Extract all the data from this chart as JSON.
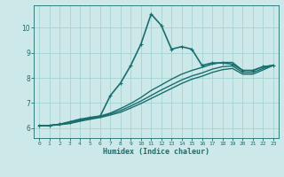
{
  "xlabel": "Humidex (Indice chaleur)",
  "ylabel": "",
  "bg_color": "#cce8e8",
  "line_color": "#1a6e6e",
  "grid_color": "#9ecfcf",
  "xlim": [
    -0.5,
    23.5
  ],
  "ylim": [
    5.6,
    10.9
  ],
  "xticks": [
    0,
    1,
    2,
    3,
    4,
    5,
    6,
    7,
    8,
    9,
    10,
    11,
    12,
    13,
    14,
    15,
    16,
    17,
    18,
    19,
    20,
    21,
    22,
    23
  ],
  "yticks": [
    6,
    7,
    8,
    9,
    10
  ],
  "lines": [
    {
      "x": [
        0,
        1,
        2,
        3,
        4,
        5,
        6,
        7,
        8,
        9,
        10,
        11,
        12,
        13,
        14,
        15,
        16,
        17,
        18,
        19,
        20,
        21,
        22,
        23
      ],
      "y": [
        6.1,
        6.1,
        6.15,
        6.25,
        6.35,
        6.42,
        6.48,
        7.3,
        7.8,
        8.5,
        9.35,
        10.55,
        10.1,
        9.15,
        9.25,
        9.15,
        8.5,
        8.6,
        8.6,
        8.55,
        8.3,
        8.3,
        8.45,
        8.5
      ],
      "marker": true,
      "lw": 1.2
    },
    {
      "x": [
        0,
        1,
        2,
        3,
        4,
        5,
        6,
        7,
        8,
        9,
        10,
        11,
        12,
        13,
        14,
        15,
        16,
        17,
        18,
        19,
        20,
        21,
        22,
        23
      ],
      "y": [
        6.1,
        6.1,
        6.15,
        6.22,
        6.32,
        6.4,
        6.48,
        6.6,
        6.78,
        6.98,
        7.22,
        7.5,
        7.72,
        7.95,
        8.15,
        8.3,
        8.42,
        8.55,
        8.62,
        8.62,
        8.3,
        8.3,
        8.45,
        8.5
      ],
      "marker": false,
      "lw": 1.0
    },
    {
      "x": [
        0,
        1,
        2,
        3,
        4,
        5,
        6,
        7,
        8,
        9,
        10,
        11,
        12,
        13,
        14,
        15,
        16,
        17,
        18,
        19,
        20,
        21,
        22,
        23
      ],
      "y": [
        6.1,
        6.1,
        6.15,
        6.2,
        6.3,
        6.38,
        6.45,
        6.56,
        6.7,
        6.88,
        7.08,
        7.3,
        7.52,
        7.72,
        7.92,
        8.08,
        8.2,
        8.35,
        8.45,
        8.48,
        8.22,
        8.22,
        8.38,
        8.5
      ],
      "marker": false,
      "lw": 1.0
    },
    {
      "x": [
        0,
        1,
        2,
        3,
        4,
        5,
        6,
        7,
        8,
        9,
        10,
        11,
        12,
        13,
        14,
        15,
        16,
        17,
        18,
        19,
        20,
        21,
        22,
        23
      ],
      "y": [
        6.1,
        6.1,
        6.13,
        6.18,
        6.27,
        6.35,
        6.42,
        6.52,
        6.63,
        6.8,
        6.98,
        7.18,
        7.38,
        7.58,
        7.78,
        7.95,
        8.07,
        8.22,
        8.33,
        8.38,
        8.15,
        8.15,
        8.32,
        8.5
      ],
      "marker": false,
      "lw": 1.0
    }
  ]
}
